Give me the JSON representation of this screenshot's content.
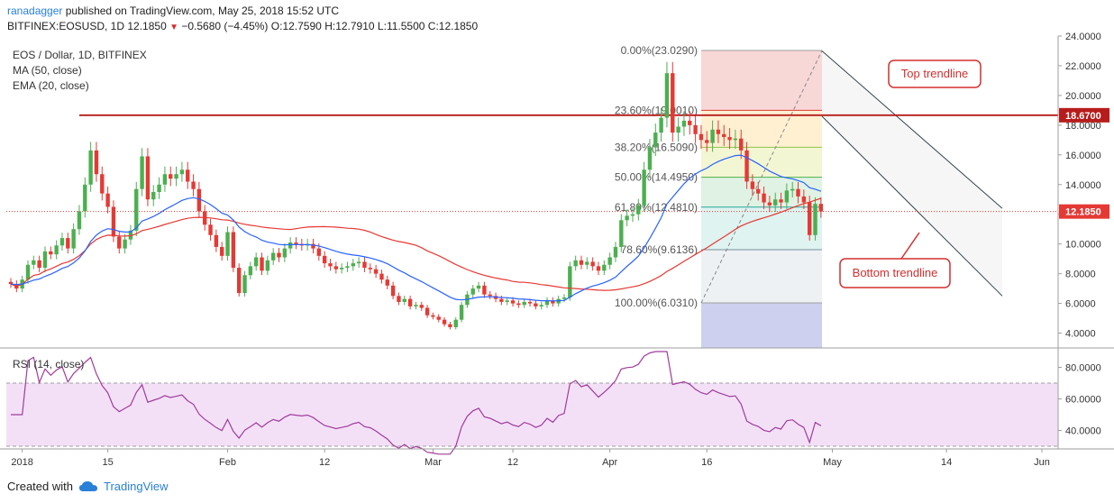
{
  "header": {
    "author": "ranadagger",
    "published_text": "published on TradingView.com, May 25, 2018 15:52 UTC",
    "symbol": "BITFINEX:EOSUSD, 1D",
    "last": "12.1850",
    "down_arrow": "▼",
    "change": "−0.5680 (−4.45%)",
    "o_label": "O:",
    "o_value": "12.7590",
    "h_label": "H:",
    "h_value": "12.7910",
    "l_label": "L:",
    "l_value": "11.5500",
    "c_label": "C:",
    "c_value": "12.1850"
  },
  "legend": {
    "title": "EOS / Dollar, 1D, BITFINEX",
    "ma": "MA (50, close)",
    "ema": "EMA (20, close)"
  },
  "rsi_legend": "RSI (14, close)",
  "footer": {
    "created_with": "Created with",
    "brand": "TradingView"
  },
  "colors": {
    "up": "#4caf50",
    "down": "#e53935",
    "ma": "#2962ff",
    "ema": "#e53935",
    "hline": "#b71c1c",
    "rsi_line": "#a03c9b",
    "rsi_band": "#f3e0f7",
    "trend": "#37474f",
    "annot": "#d32f2f"
  },
  "chart_data": [
    {
      "type": "candlestick",
      "title": "EOS / Dollar, 1D, BITFINEX",
      "ylim": [
        3,
        24
      ],
      "y_ticks": [
        "24.0000",
        "22.0000",
        "20.0000",
        "18.0000",
        "16.0000",
        "14.0000",
        "12.0000",
        "10.0000",
        "8.0000",
        "6.0000",
        "4.0000"
      ],
      "x_ticks": [
        "2018",
        "15",
        "Feb",
        "12",
        "Mar",
        "12",
        "Apr",
        "16",
        "May",
        "14",
        "Jun"
      ],
      "price_tag": "12.1850",
      "resistance_tag": "18.6700",
      "resistance_level": 18.67,
      "fib_levels": [
        {
          "label": "0.00%(23.0290)",
          "value": 23.029
        },
        {
          "label": "23.60%(19.0010)",
          "value": 19.001
        },
        {
          "label": "38.20%(16.5090)",
          "value": 16.509
        },
        {
          "label": "50.00%(14.4950)",
          "value": 14.495
        },
        {
          "label": "61.80%(12.4810)",
          "value": 12.481
        },
        {
          "label": "78.60%(9.6136)",
          "value": 9.6136
        },
        {
          "label": "100.00%(6.0310)",
          "value": 6.031
        }
      ],
      "annotations": [
        "Top trendline",
        "Bottom trendline"
      ],
      "close": [
        7.3,
        7.0,
        7.6,
        8.6,
        8.9,
        8.4,
        9.5,
        9.3,
        9.9,
        10.4,
        9.7,
        11.0,
        12.2,
        14.0,
        16.3,
        14.7,
        13.4,
        12.5,
        10.5,
        9.7,
        10.3,
        10.9,
        13.7,
        15.9,
        13.0,
        13.5,
        14.0,
        14.7,
        14.4,
        14.7,
        15.0,
        14.2,
        13.7,
        12.2,
        11.3,
        10.6,
        9.8,
        9.2,
        10.8,
        8.4,
        6.7,
        7.9,
        8.5,
        9.1,
        8.2,
        8.9,
        9.4,
        9.1,
        9.7,
        10.1,
        10.0,
        9.9,
        10.0,
        9.7,
        9.2,
        8.7,
        8.5,
        8.3,
        8.4,
        8.5,
        8.7,
        8.8,
        8.4,
        8.3,
        8.0,
        7.6,
        7.2,
        6.5,
        6.1,
        6.3,
        5.8,
        5.9,
        5.7,
        5.2,
        5.1,
        4.9,
        4.6,
        4.4,
        4.9,
        5.9,
        6.6,
        7.0,
        7.2,
        6.6,
        6.5,
        6.3,
        6.1,
        6.2,
        6.0,
        5.9,
        6.1,
        6.0,
        5.8,
        5.9,
        6.2,
        6.0,
        6.3,
        6.4,
        8.5,
        8.9,
        8.6,
        8.8,
        8.5,
        8.2,
        8.6,
        9.1,
        9.8,
        11.6,
        11.9,
        12.0,
        12.6,
        15.0,
        16.5,
        17.5,
        18.5,
        21.5,
        17.5,
        17.9,
        18.3,
        18.0,
        17.4,
        17.0,
        16.8,
        17.7,
        17.4,
        17.2,
        17.0,
        17.1,
        16.3,
        14.2,
        13.7,
        13.4,
        12.8,
        12.6,
        13.0,
        12.8,
        13.6,
        13.7,
        13.2,
        12.8,
        10.6,
        12.7,
        12.19
      ]
    },
    {
      "type": "line",
      "title": "RSI (14, close)",
      "ylim": [
        30,
        90
      ],
      "y_ticks": [
        "80.0000",
        "60.0000",
        "40.0000"
      ]
    }
  ]
}
